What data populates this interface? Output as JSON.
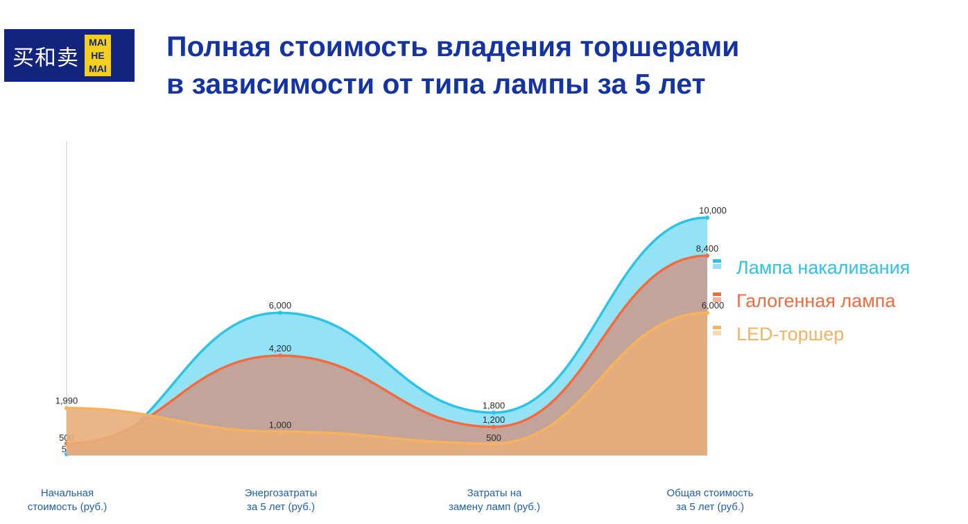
{
  "logo": {
    "text": "买和卖",
    "badge": [
      "MAI",
      "HE",
      "MAI"
    ]
  },
  "title": {
    "line1": "Полная стоимость владения торшерами",
    "line2": "в зависимости от типа лампы за 5 лет"
  },
  "chart_data": {
    "type": "area",
    "title": "Полная стоимость владения торшерами в зависимости от типа лампы за 5 лет",
    "categories": [
      [
        "Начальная",
        "стоимость (руб.)"
      ],
      [
        "Энергозатраты",
        "за 5 лет (руб.)"
      ],
      [
        "Затраты на",
        "замену ламп (руб.)"
      ],
      [
        "Общая стоимость",
        "за 5 лет (руб.)"
      ]
    ],
    "series": [
      {
        "name": "Лампа накаливания",
        "color": "#2cc4e6",
        "fill": "#8ee0f4",
        "values": [
          50,
          6000,
          1800,
          10000
        ],
        "labels": [
          "50",
          "6,000",
          "1,800",
          "10,000"
        ]
      },
      {
        "name": "Галогенная лампа",
        "color": "#f36a3f",
        "fill": "#c5a096",
        "values": [
          500,
          4200,
          1200,
          8400
        ],
        "labels": [
          "500",
          "4,200",
          "1,200",
          "8,400"
        ]
      },
      {
        "name": "LED-торшер",
        "color": "#f7b25d",
        "fill": "#e8ae7a",
        "values": [
          1990,
          1000,
          500,
          6000
        ],
        "labels": [
          "1,990",
          "1,000",
          "500",
          "6,000"
        ]
      }
    ],
    "ylim": [
      0,
      10000
    ],
    "grid": false,
    "legend": "right"
  }
}
